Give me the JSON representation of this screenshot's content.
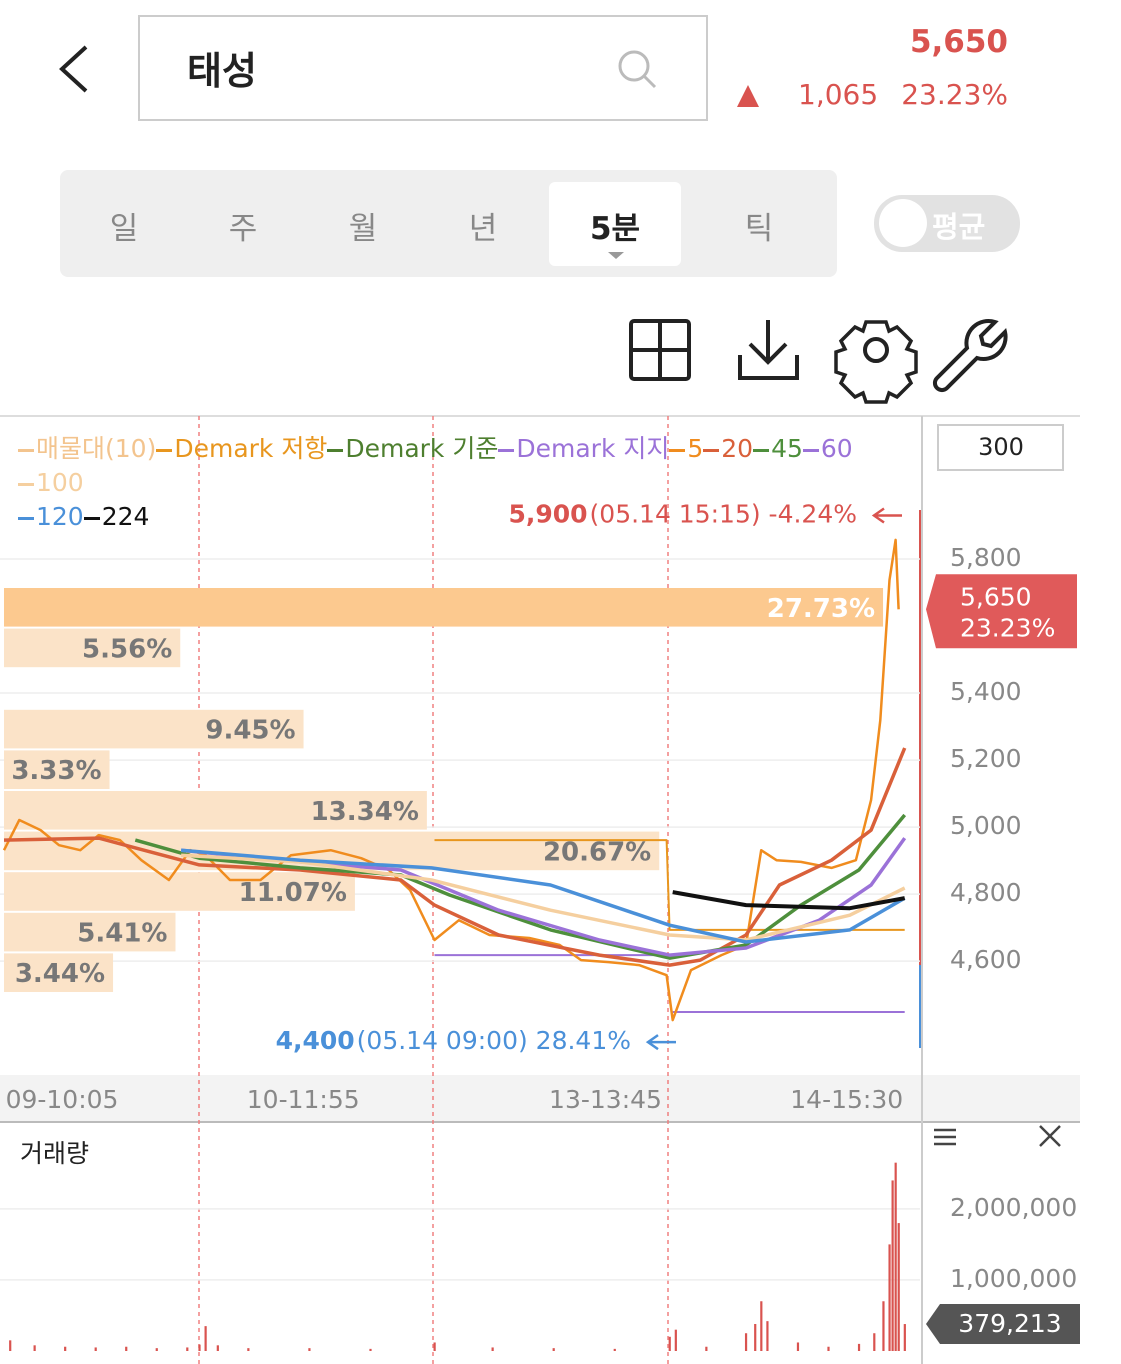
{
  "header": {
    "title": "태성",
    "price": "5,650",
    "change": "1,065",
    "change_pct": "23.23%"
  },
  "tabs": {
    "items": [
      "일",
      "주",
      "월",
      "년",
      "5분",
      "틱"
    ],
    "active": 4,
    "toggle": "평균"
  },
  "chart_data": [
    {
      "type": "line",
      "period": "300",
      "xlim": [
        0,
        300
      ],
      "xticks": [
        {
          "value": 19,
          "label": "09-10:05"
        },
        {
          "value": 98,
          "label": "10-11:55"
        },
        {
          "value": 197,
          "label": "13-13:45"
        },
        {
          "value": 276,
          "label": "14-15:30"
        }
      ],
      "ylim": [
        4260,
        6215
      ],
      "yticks": [
        {
          "value": 4600,
          "label": "4,600"
        },
        {
          "value": 4800,
          "label": "4,800"
        },
        {
          "value": 5000,
          "label": "5,000"
        },
        {
          "value": 5200,
          "label": "5,200"
        },
        {
          "value": 5400,
          "label": "5,400"
        },
        {
          "value": 5800,
          "label": "5,800"
        }
      ],
      "grid": true,
      "current": {
        "value": 5650,
        "label": "5,650",
        "change_pct": "23.23%"
      },
      "high": {
        "value": 5900,
        "label": "5,900",
        "detail": "(05.14 15:15) -4.24%"
      },
      "low": {
        "value": 4400,
        "label": "4,400",
        "detail": "(05.14 09:00) 28.41%"
      },
      "volume_profile": {
        "name": "매물대(10)",
        "color": "#fbe3c8",
        "highlight": "#fcc98f",
        "legend_color": "#f3c48e",
        "values": [
          27.73,
          5.56,
          0,
          9.45,
          3.33,
          13.34,
          20.67,
          11.07,
          5.41,
          3.44
        ],
        "value_labels": [
          "27.73%",
          "5.56%",
          null,
          "9.45%",
          "3.33%",
          "13.34%",
          "20.67%",
          "11.07%",
          "5.41%",
          "3.44%"
        ]
      },
      "series": [
        {
          "name": "Demark 저항",
          "color": "#e8961e",
          "x": [
            141,
            217,
            218,
            295
          ],
          "values": [
            4961,
            4961,
            4693,
            4693
          ]
        },
        {
          "name": "Demark 기준",
          "color": "#4e7f2f",
          "x": [],
          "values": []
        },
        {
          "name": "Demark 지지",
          "color": "#9b72d8",
          "x": [
            141,
            217,
            218,
            219,
            295
          ],
          "values": [
            4618,
            4618,
            null,
            4448,
            4448
          ]
        },
        {
          "name": "5",
          "color": "#f08c1e",
          "x": [
            0,
            5,
            12,
            18,
            25,
            31,
            38,
            45,
            54,
            61,
            66,
            74,
            84,
            94,
            107,
            117,
            126,
            133,
            141,
            149,
            159,
            172,
            182,
            189,
            198,
            208,
            217,
            219,
            225,
            235,
            243,
            248,
            253,
            261,
            271,
            279,
            284,
            287,
            290,
            292,
            293
          ],
          "values": [
            4931,
            5021,
            4991,
            4946,
            4931,
            4976,
            4961,
            4901,
            4842,
            4931,
            4916,
            4842,
            4842,
            4916,
            4931,
            4907,
            4872,
            4812,
            4663,
            4722,
            4678,
            4669,
            4648,
            4603,
            4597,
            4588,
            4558,
            4424,
            4573,
            4618,
            4648,
            4931,
            4901,
            4896,
            4878,
            4901,
            5081,
            5319,
            5737,
            5857,
            5650
          ]
        },
        {
          "name": "20",
          "color": "#d9603a",
          "x": [
            0,
            31,
            64,
            97,
            130,
            141,
            162,
            195,
            218,
            228,
            243,
            254,
            271,
            284,
            295
          ],
          "values": [
            4961,
            4967,
            4887,
            4872,
            4842,
            4767,
            4678,
            4618,
            4588,
            4603,
            4678,
            4827,
            4901,
            4991,
            5236
          ]
        },
        {
          "name": "45",
          "color": "#4e8f3c",
          "x": [
            43,
            64,
            97,
            130,
            146,
            179,
            218,
            243,
            261,
            280,
            295
          ],
          "values": [
            4961,
            4907,
            4878,
            4857,
            4797,
            4693,
            4609,
            4648,
            4767,
            4872,
            5036
          ]
        },
        {
          "name": "60",
          "color": "#9b72d8",
          "x": [
            58,
            97,
            130,
            162,
            195,
            218,
            243,
            267,
            284,
            295
          ],
          "values": [
            4931,
            4896,
            4872,
            4752,
            4663,
            4618,
            4639,
            4722,
            4827,
            4967
          ]
        },
        {
          "name": "100",
          "color": "#f5cf9f",
          "x": [
            58,
            97,
            140,
            179,
            218,
            243,
            277,
            295
          ],
          "values": [
            4916,
            4896,
            4842,
            4752,
            4678,
            4663,
            4737,
            4818
          ]
        },
        {
          "name": "120",
          "color": "#4a90d9",
          "x": [
            58,
            97,
            140,
            179,
            218,
            243,
            277,
            295
          ],
          "values": [
            4931,
            4901,
            4878,
            4827,
            4707,
            4657,
            4693,
            4788
          ]
        },
        {
          "name": "224",
          "color": "#111111",
          "x": [
            219,
            243,
            277,
            295
          ],
          "values": [
            4806,
            4767,
            4758,
            4788
          ]
        }
      ]
    },
    {
      "type": "bar",
      "title": "거래량",
      "xlim": [
        0,
        300
      ],
      "ylim": [
        0,
        3180000
      ],
      "yticks": [
        {
          "value": 1000000,
          "label": "1,000,000"
        },
        {
          "value": 2000000,
          "label": "2,000,000"
        }
      ],
      "current": {
        "value": 379213,
        "label": "379,213"
      },
      "color": "#d9534f",
      "x": [
        2,
        10,
        20,
        30,
        40,
        50,
        60,
        64,
        66,
        70,
        80,
        100,
        120,
        141,
        160,
        180,
        200,
        218,
        220,
        230,
        243,
        246,
        248,
        250,
        260,
        270,
        280,
        285,
        288,
        290,
        291,
        292,
        293,
        295
      ],
      "values": [
        150000,
        80000,
        60000,
        50000,
        60000,
        40000,
        50000,
        90000,
        350000,
        80000,
        40000,
        40000,
        30000,
        120000,
        50000,
        40000,
        30000,
        200000,
        300000,
        60000,
        250000,
        380000,
        700000,
        420000,
        120000,
        60000,
        100000,
        250000,
        700000,
        1500000,
        2400000,
        2650000,
        1800000,
        379213
      ]
    }
  ]
}
